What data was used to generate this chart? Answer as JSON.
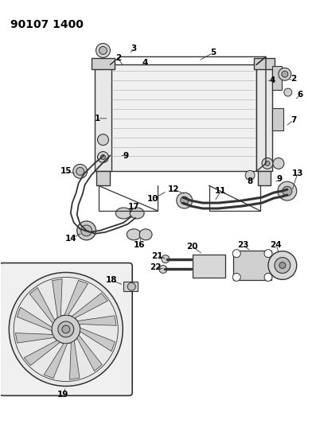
{
  "title": "90107 1400",
  "bg_color": "#ffffff",
  "title_fontsize": 10,
  "title_fontweight": "bold",
  "line_color": "#333333",
  "label_fontsize": 7.5
}
